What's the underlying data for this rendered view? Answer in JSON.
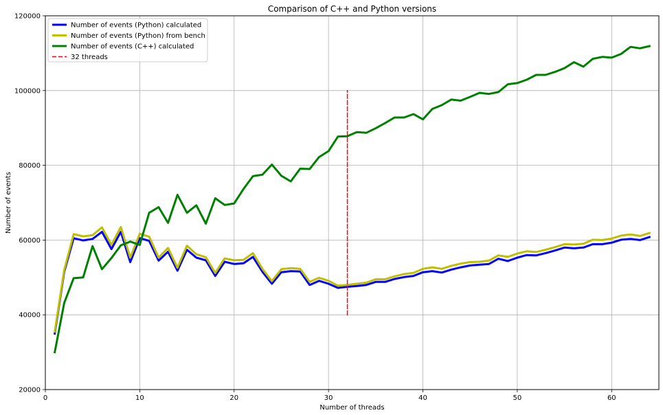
{
  "chart_data": {
    "type": "line",
    "title": "Comparison of C++ and Python versions",
    "xlabel": "Number of threads",
    "ylabel": "Number of events",
    "xlim": [
      0,
      65
    ],
    "ylim": [
      20000,
      120000
    ],
    "xticks": [
      0,
      10,
      20,
      30,
      40,
      50,
      60
    ],
    "yticks": [
      20000,
      40000,
      60000,
      80000,
      100000,
      120000
    ],
    "grid": true,
    "legend_position": "top-left",
    "series": [
      {
        "name": "Number of events (Python) calculated",
        "color": "#0000ff",
        "x": [
          1,
          2,
          3,
          4,
          5,
          6,
          7,
          8,
          9,
          10,
          11,
          12,
          13,
          14,
          15,
          16,
          17,
          18,
          19,
          20,
          21,
          22,
          23,
          24,
          25,
          26,
          27,
          28,
          29,
          30,
          31,
          32,
          33,
          34,
          35,
          36,
          37,
          38,
          39,
          40,
          41,
          42,
          43,
          44,
          45,
          46,
          47,
          48,
          49,
          50,
          51,
          52,
          53,
          54,
          55,
          56,
          57,
          58,
          59,
          60,
          61,
          62,
          63,
          64
        ],
        "values": [
          35000,
          51500,
          60500,
          59900,
          60300,
          62200,
          57600,
          62200,
          54100,
          60500,
          59800,
          54500,
          56900,
          51800,
          57400,
          55300,
          54600,
          50400,
          54200,
          53600,
          53800,
          55500,
          51500,
          48300,
          51400,
          51700,
          51600,
          48000,
          49100,
          48300,
          47200,
          47500,
          47700,
          48000,
          48800,
          48800,
          49600,
          50100,
          50400,
          51400,
          51700,
          51300,
          52100,
          52700,
          53200,
          53400,
          53600,
          55000,
          54400,
          55300,
          56000,
          55900,
          56500,
          57200,
          58000,
          57800,
          58000,
          58900,
          58900,
          59300,
          60100,
          60300,
          60000,
          60800
        ]
      },
      {
        "name": "Number of events (Python) from bench",
        "color": "#bfbf00",
        "x": [
          1,
          2,
          3,
          4,
          5,
          6,
          7,
          8,
          9,
          10,
          11,
          12,
          13,
          14,
          15,
          16,
          17,
          18,
          19,
          20,
          21,
          22,
          23,
          24,
          25,
          26,
          27,
          28,
          29,
          30,
          31,
          32,
          33,
          34,
          35,
          36,
          37,
          38,
          39,
          40,
          41,
          42,
          43,
          44,
          45,
          46,
          47,
          48,
          49,
          50,
          51,
          52,
          53,
          54,
          55,
          56,
          57,
          58,
          59,
          60,
          61,
          62,
          63,
          64
        ],
        "values": [
          35500,
          52000,
          61600,
          61000,
          61300,
          63400,
          58700,
          63500,
          55300,
          61700,
          60900,
          55300,
          57900,
          52600,
          58500,
          56200,
          55400,
          51200,
          55100,
          54600,
          54700,
          56500,
          52300,
          49000,
          52200,
          52500,
          52300,
          48800,
          49900,
          49100,
          47800,
          48000,
          48300,
          48600,
          49500,
          49500,
          50300,
          50900,
          51200,
          52300,
          52700,
          52300,
          53100,
          53700,
          54100,
          54200,
          54500,
          55900,
          55500,
          56400,
          57000,
          56800,
          57400,
          58100,
          58900,
          58800,
          59000,
          60100,
          60000,
          60400,
          61200,
          61500,
          61100,
          61900
        ]
      },
      {
        "name": "Number of events (C++) calculated",
        "color": "#008000",
        "x": [
          1,
          2,
          3,
          4,
          5,
          6,
          7,
          8,
          9,
          10,
          11,
          12,
          13,
          14,
          15,
          16,
          17,
          18,
          19,
          20,
          21,
          22,
          23,
          24,
          25,
          26,
          27,
          28,
          29,
          30,
          31,
          32,
          33,
          34,
          35,
          36,
          37,
          38,
          39,
          40,
          41,
          42,
          43,
          44,
          45,
          46,
          47,
          48,
          49,
          50,
          51,
          52,
          53,
          54,
          55,
          56,
          57,
          58,
          59,
          60,
          61,
          62,
          63,
          64
        ],
        "values": [
          30000,
          43200,
          49800,
          50000,
          58400,
          52200,
          55200,
          58600,
          59600,
          58700,
          67300,
          68800,
          64600,
          72100,
          67300,
          69300,
          64400,
          71200,
          69400,
          69800,
          73700,
          77100,
          77500,
          80200,
          77200,
          75700,
          79100,
          79000,
          82200,
          83800,
          87700,
          87800,
          88900,
          88700,
          89900,
          91300,
          92800,
          92800,
          93700,
          92300,
          95100,
          96100,
          97600,
          97300,
          98300,
          99400,
          99100,
          99600,
          101700,
          102000,
          102900,
          104200,
          104200,
          105000,
          106000,
          107600,
          106400,
          108500,
          109000,
          108800,
          109800,
          111700,
          111300,
          111900
        ]
      },
      {
        "name": "32 threads",
        "color": "#ff0000",
        "dashed": true,
        "x": [
          32,
          32
        ],
        "values": [
          40000,
          100000
        ]
      }
    ]
  }
}
